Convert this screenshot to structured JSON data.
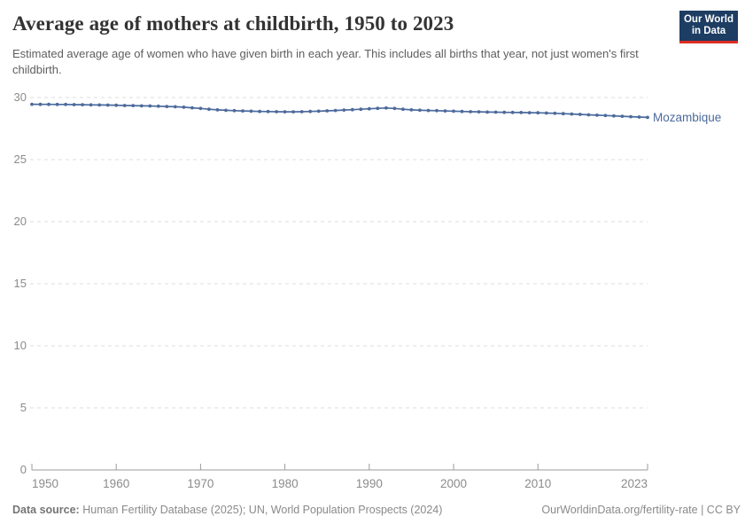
{
  "header": {
    "title": "Average age of mothers at childbirth, 1950 to 2023",
    "subtitle": "Estimated average age of women who have given birth in each year. This includes all births that year, not just women's first childbirth.",
    "logo": {
      "line1": "Our World",
      "line2": "in Data",
      "bg_color": "#1d3d63",
      "accent_color": "#dc2e22"
    }
  },
  "chart_data": {
    "type": "line",
    "title": "Average age of mothers at childbirth, 1950 to 2023",
    "xlabel": "",
    "ylabel": "",
    "xlim": [
      1950,
      2023
    ],
    "ylim": [
      0,
      30
    ],
    "x_ticks": [
      1950,
      1960,
      1970,
      1980,
      1990,
      2000,
      2010,
      2023
    ],
    "y_ticks": [
      0,
      5,
      10,
      15,
      20,
      25,
      30
    ],
    "grid": "dashed-horizontal",
    "legend_position": "end-of-line-label",
    "series": [
      {
        "name": "Mozambique",
        "color": "#4c6a9c",
        "x": [
          1950,
          1951,
          1952,
          1953,
          1954,
          1955,
          1956,
          1957,
          1958,
          1959,
          1960,
          1961,
          1962,
          1963,
          1964,
          1965,
          1966,
          1967,
          1968,
          1969,
          1970,
          1971,
          1972,
          1973,
          1974,
          1975,
          1976,
          1977,
          1978,
          1979,
          1980,
          1981,
          1982,
          1983,
          1984,
          1985,
          1986,
          1987,
          1988,
          1989,
          1990,
          1991,
          1992,
          1993,
          1994,
          1995,
          1996,
          1997,
          1998,
          1999,
          2000,
          2001,
          2002,
          2003,
          2004,
          2005,
          2006,
          2007,
          2008,
          2009,
          2010,
          2011,
          2012,
          2013,
          2014,
          2015,
          2016,
          2017,
          2018,
          2019,
          2020,
          2021,
          2022,
          2023
        ],
        "values": [
          29.46,
          29.45,
          29.45,
          29.44,
          29.44,
          29.43,
          29.42,
          29.41,
          29.4,
          29.39,
          29.38,
          29.36,
          29.35,
          29.33,
          29.32,
          29.3,
          29.28,
          29.26,
          29.22,
          29.17,
          29.12,
          29.06,
          29.01,
          28.97,
          28.94,
          28.92,
          28.9,
          28.88,
          28.87,
          28.86,
          28.85,
          28.85,
          28.86,
          28.88,
          28.9,
          28.93,
          28.96,
          28.99,
          29.02,
          29.06,
          29.09,
          29.13,
          29.16,
          29.12,
          29.06,
          29.01,
          28.98,
          28.96,
          28.94,
          28.92,
          28.9,
          28.88,
          28.86,
          28.85,
          28.83,
          28.82,
          28.81,
          28.8,
          28.79,
          28.78,
          28.77,
          28.75,
          28.73,
          28.7,
          28.67,
          28.64,
          28.61,
          28.58,
          28.55,
          28.52,
          28.49,
          28.46,
          28.43,
          28.4
        ]
      }
    ],
    "colors": {
      "gridline": "#dcdcdc",
      "axis": "#9b9b9b",
      "tick_label": "#8b8b8b"
    }
  },
  "footer": {
    "datasource_label": "Data source:",
    "datasource_value": "Human Fertility Database (2025); UN, World Population Prospects (2024)",
    "rights": "OurWorldinData.org/fertility-rate | CC BY"
  }
}
